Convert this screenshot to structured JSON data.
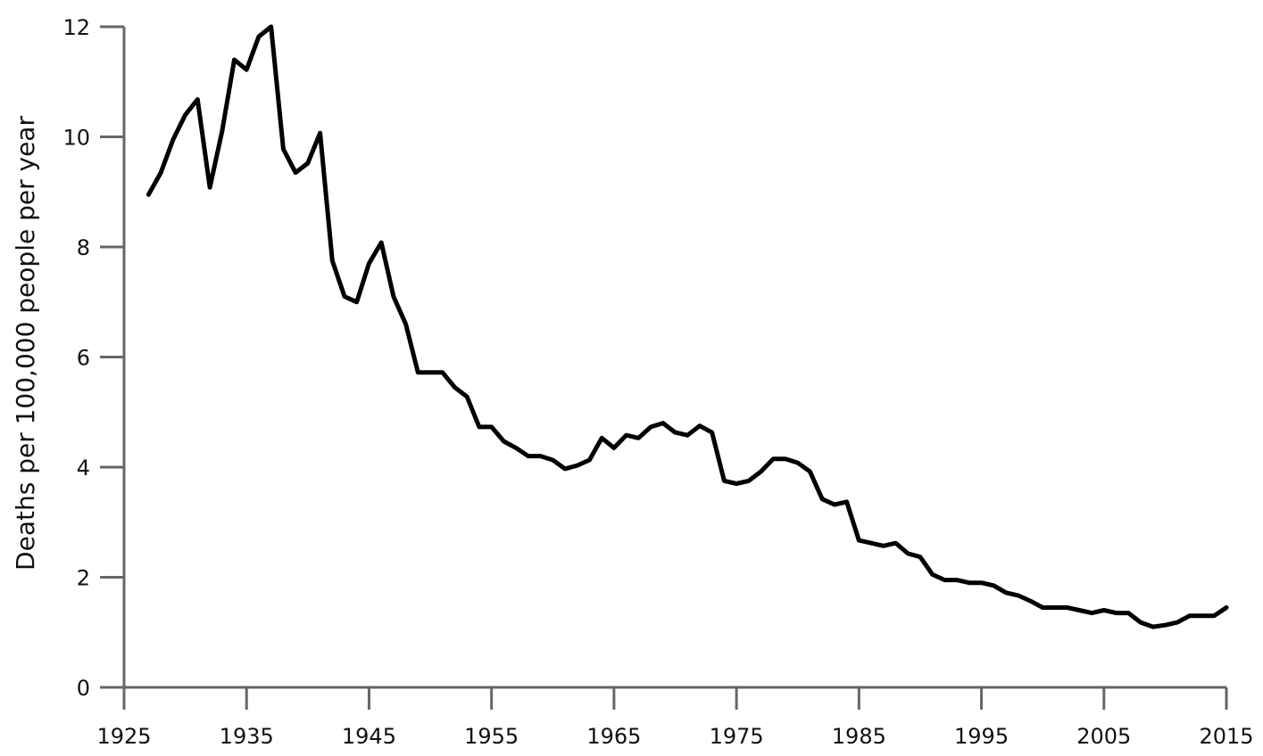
{
  "chart_data": {
    "type": "line",
    "title": "",
    "xlabel": "",
    "ylabel": "Deaths per 100,000 people per year",
    "xlim": [
      1925,
      2015
    ],
    "ylim": [
      0,
      12
    ],
    "x_ticks": [
      1925,
      1935,
      1945,
      1955,
      1965,
      1975,
      1985,
      1995,
      2005,
      2015
    ],
    "y_ticks": [
      0,
      2,
      4,
      6,
      8,
      10,
      12
    ],
    "grid": false,
    "legend": "none",
    "colors": {
      "line": "#000000",
      "axis": "#666666"
    },
    "series": [
      {
        "x": [
          1927,
          1928,
          1929,
          1930,
          1931,
          1932,
          1933,
          1934,
          1935,
          1936,
          1937,
          1938,
          1939,
          1940,
          1941,
          1942,
          1943,
          1944,
          1945,
          1946,
          1947,
          1948,
          1949,
          1950,
          1951,
          1952,
          1953,
          1954,
          1955,
          1956,
          1957,
          1958,
          1959,
          1960,
          1961,
          1962,
          1963,
          1964,
          1965,
          1966,
          1967,
          1968,
          1969,
          1970,
          1971,
          1972,
          1973,
          1974,
          1975,
          1976,
          1977,
          1978,
          1979,
          1980,
          1981,
          1982,
          1983,
          1984,
          1985,
          1986,
          1987,
          1988,
          1989,
          1990,
          1991,
          1992,
          1993,
          1994,
          1995,
          1996,
          1997,
          1998,
          1999,
          2000,
          2001,
          2002,
          2003,
          2004,
          2005,
          2006,
          2007,
          2008,
          2009,
          2010,
          2011,
          2012,
          2013,
          2014,
          2015
        ],
        "values": [
          8.95,
          9.35,
          9.95,
          10.4,
          10.68,
          9.08,
          10.1,
          11.4,
          11.22,
          11.82,
          12.0,
          9.78,
          9.35,
          9.52,
          10.07,
          7.75,
          7.1,
          7.0,
          7.7,
          8.08,
          7.1,
          6.6,
          5.72,
          5.72,
          5.72,
          5.45,
          5.28,
          4.73,
          4.73,
          4.47,
          4.35,
          4.2,
          4.2,
          4.13,
          3.97,
          4.03,
          4.13,
          4.53,
          4.35,
          4.58,
          4.53,
          4.73,
          4.8,
          4.63,
          4.58,
          4.75,
          4.63,
          3.75,
          3.7,
          3.75,
          3.92,
          4.15,
          4.15,
          4.08,
          3.92,
          3.42,
          3.32,
          3.37,
          2.67,
          2.62,
          2.57,
          2.62,
          2.43,
          2.37,
          2.05,
          1.95,
          1.95,
          1.9,
          1.9,
          1.85,
          1.72,
          1.67,
          1.57,
          1.45,
          1.45,
          1.45,
          1.4,
          1.35,
          1.4,
          1.35,
          1.35,
          1.18,
          1.1,
          1.13,
          1.18,
          1.3,
          1.3,
          1.3,
          1.45
        ]
      }
    ]
  }
}
